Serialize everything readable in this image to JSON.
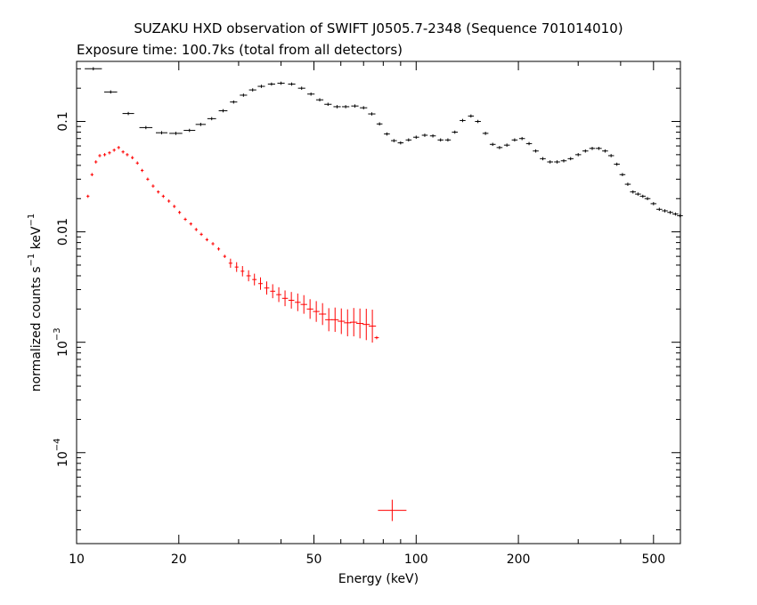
{
  "chart_data": {
    "type": "scatter",
    "title": "SUZAKU HXD observation of SWIFT J0505.7-2348 (Sequence 701014010)",
    "subtitle": "Exposure time: 100.7ks (total from all detectors)",
    "xlabel": "Energy (keV)",
    "ylabel": {
      "prefix": "normalized counts s",
      "exp1": "−1",
      "mid": " keV",
      "exp2": "−1"
    },
    "x_scale": "log",
    "y_scale": "log",
    "xlim": [
      10,
      600
    ],
    "ylim": [
      1.5e-05,
      0.35
    ],
    "grid": false,
    "legend": "none",
    "x_ticks": [
      {
        "value": 10,
        "label": "10"
      },
      {
        "value": 20,
        "label": "20"
      },
      {
        "value": 50,
        "label": "50"
      },
      {
        "value": 100,
        "label": "100"
      },
      {
        "value": 200,
        "label": "200"
      },
      {
        "value": 500,
        "label": "500"
      }
    ],
    "y_ticks": [
      {
        "value": 0.1,
        "label": "0.1"
      },
      {
        "value": 0.01,
        "label": "0.01"
      },
      {
        "value": 0.001,
        "base": "10",
        "exp": "−3"
      },
      {
        "value": 0.0001,
        "base": "10",
        "exp": "−4"
      }
    ],
    "series": [
      {
        "color": "#000000",
        "points": [
          [
            11.2,
            0.3,
            1.2
          ],
          [
            12.6,
            0.185,
            0.9
          ],
          [
            14.2,
            0.118,
            0.8
          ],
          [
            16.0,
            0.088,
            0.9
          ],
          [
            17.8,
            0.079,
            0.8
          ],
          [
            19.6,
            0.078,
            0.9
          ],
          [
            21.5,
            0.083,
            0.8
          ],
          [
            23.2,
            0.094,
            0.7
          ],
          [
            25.0,
            0.106,
            0.6
          ],
          [
            27.0,
            0.125,
            0.6
          ],
          [
            29.0,
            0.15,
            0.5
          ],
          [
            31.0,
            0.173,
            0.5
          ],
          [
            33.0,
            0.193,
            0.5
          ],
          [
            35.0,
            0.208,
            0.5
          ],
          [
            37.5,
            0.218,
            0.5
          ],
          [
            40.0,
            0.222,
            0.5
          ],
          [
            43.0,
            0.218,
            0.5
          ],
          [
            46.0,
            0.2,
            0.5
          ],
          [
            49.0,
            0.177,
            0.5
          ],
          [
            52.0,
            0.157,
            0.5
          ],
          [
            55.0,
            0.143,
            0.5
          ],
          [
            58.5,
            0.136,
            0.5
          ],
          [
            62.0,
            0.136,
            0.5
          ],
          [
            66.0,
            0.138,
            0.5
          ],
          [
            70.0,
            0.133,
            0.5
          ],
          [
            74.0,
            0.117,
            0.5
          ],
          [
            78.0,
            0.095,
            0.4
          ],
          [
            82.0,
            0.077,
            0.4
          ],
          [
            86.0,
            0.067,
            0.4
          ],
          [
            90.0,
            0.064,
            0.4
          ],
          [
            95.0,
            0.068,
            0.4
          ],
          [
            100.0,
            0.072,
            0.4
          ],
          [
            106.0,
            0.075,
            0.4
          ],
          [
            112.0,
            0.074,
            0.4
          ],
          [
            118.0,
            0.068,
            0.4
          ],
          [
            124.0,
            0.068,
            0.4
          ],
          [
            130.0,
            0.08,
            0.4
          ],
          [
            137.0,
            0.102,
            0.4
          ],
          [
            145.0,
            0.112,
            0.4
          ],
          [
            152.0,
            0.1,
            0.4
          ],
          [
            160.0,
            0.078,
            0.4
          ],
          [
            168.0,
            0.062,
            0.4
          ],
          [
            176.0,
            0.058,
            0.4
          ],
          [
            185.0,
            0.061,
            0.4
          ],
          [
            195.0,
            0.068,
            0.4
          ],
          [
            205.0,
            0.07,
            0.4
          ],
          [
            215.0,
            0.063,
            0.4
          ],
          [
            225.0,
            0.054,
            0.4
          ],
          [
            236.0,
            0.046,
            0.4
          ],
          [
            248.0,
            0.043,
            0.4
          ],
          [
            260.0,
            0.043,
            0.4
          ],
          [
            272.0,
            0.044,
            0.4
          ],
          [
            285.0,
            0.046,
            0.4
          ],
          [
            300.0,
            0.05,
            0.4
          ],
          [
            315.0,
            0.054,
            0.4
          ],
          [
            330.0,
            0.057,
            0.4
          ],
          [
            345.0,
            0.057,
            0.4
          ],
          [
            360.0,
            0.054,
            0.4
          ],
          [
            375.0,
            0.049,
            0.4
          ],
          [
            390.0,
            0.041,
            0.4
          ],
          [
            405.0,
            0.033,
            0.4
          ],
          [
            420.0,
            0.027,
            0.4
          ],
          [
            435.0,
            0.023,
            0.4
          ],
          [
            450.0,
            0.022,
            0.4
          ],
          [
            465.0,
            0.021,
            0.4
          ],
          [
            480.0,
            0.02,
            0.4
          ],
          [
            500.0,
            0.018,
            0.4
          ],
          [
            520.0,
            0.016,
            0.4
          ],
          [
            540.0,
            0.0155,
            0.4
          ],
          [
            560.0,
            0.015,
            0.4
          ],
          [
            580.0,
            0.0145,
            0.4
          ],
          [
            598.0,
            0.014,
            0.4
          ]
        ]
      },
      {
        "color": "#ff0000",
        "points": [
          [
            10.8,
            0.021,
            0.2
          ],
          [
            11.1,
            0.033,
            0.2
          ],
          [
            11.4,
            0.043,
            0.2
          ],
          [
            11.7,
            0.049,
            0.2
          ],
          [
            12.1,
            0.05,
            0.2
          ],
          [
            12.5,
            0.052,
            0.2
          ],
          [
            12.9,
            0.055,
            0.2
          ],
          [
            13.3,
            0.058,
            0.2
          ],
          [
            13.7,
            0.053,
            0.2
          ],
          [
            14.1,
            0.05,
            0.2
          ],
          [
            14.6,
            0.047,
            0.2
          ],
          [
            15.1,
            0.042,
            0.2
          ],
          [
            15.6,
            0.036,
            0.2
          ],
          [
            16.2,
            0.03,
            0.2
          ],
          [
            16.8,
            0.026,
            0.2
          ],
          [
            17.4,
            0.023,
            0.2
          ],
          [
            18.0,
            0.021,
            0.2
          ],
          [
            18.7,
            0.019,
            0.2
          ],
          [
            19.4,
            0.017,
            0.2
          ],
          [
            20.1,
            0.015,
            0.2
          ],
          [
            20.9,
            0.013,
            0.2
          ],
          [
            21.7,
            0.0118,
            0.2
          ],
          [
            22.5,
            0.0105,
            0.2
          ],
          [
            23.3,
            0.0095,
            0.2
          ],
          [
            24.2,
            0.0085,
            0.2
          ],
          [
            25.2,
            0.0078,
            0.2
          ],
          [
            26.2,
            0.007,
            0.2
          ],
          [
            27.3,
            0.006,
            0.2
          ],
          [
            28.4,
            0.0052,
            0.25
          ],
          [
            29.6,
            0.0048,
            0.25
          ],
          [
            30.8,
            0.0044,
            0.25
          ],
          [
            32.1,
            0.004,
            0.3
          ],
          [
            33.4,
            0.0037,
            0.3
          ],
          [
            34.8,
            0.0034,
            0.3
          ],
          [
            36.3,
            0.0031,
            0.35
          ],
          [
            37.8,
            0.0029,
            0.35
          ],
          [
            39.4,
            0.0027,
            0.35
          ],
          [
            41.1,
            0.0025,
            0.4
          ],
          [
            42.9,
            0.0024,
            0.4
          ],
          [
            44.8,
            0.0023,
            0.4
          ],
          [
            46.7,
            0.0022,
            0.45
          ],
          [
            48.7,
            0.002,
            0.45
          ],
          [
            50.8,
            0.0019,
            0.45
          ],
          [
            53.0,
            0.0018,
            0.5
          ],
          [
            55.3,
            0.0016,
            0.5
          ],
          [
            57.7,
            0.0016,
            0.5
          ],
          [
            60.2,
            0.00155,
            0.5
          ],
          [
            62.8,
            0.0015,
            0.5
          ],
          [
            65.5,
            0.00152,
            0.5
          ],
          [
            68.3,
            0.00148,
            0.5
          ],
          [
            71.3,
            0.00145,
            0.5
          ],
          [
            74.3,
            0.0014,
            0.5
          ],
          [
            76.5,
            0.0011,
            0.3
          ],
          [
            85.0,
            3e-05,
            0.4
          ]
        ]
      }
    ]
  }
}
